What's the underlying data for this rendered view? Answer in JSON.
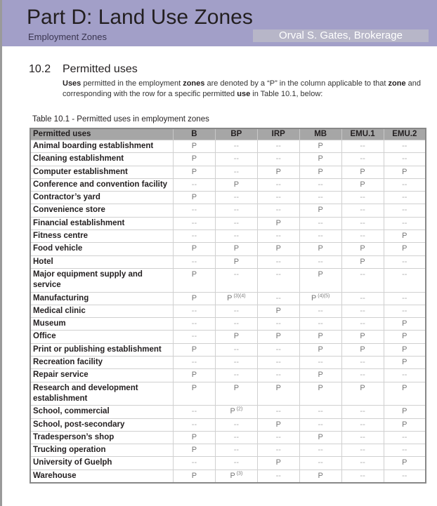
{
  "header": {
    "title": "Part D: Land Use Zones",
    "subtitle": "Employment Zones",
    "band_color": "#a29fc8"
  },
  "section": {
    "number": "10.2",
    "title": "Permitted uses",
    "intro": [
      {
        "t": "Uses",
        "b": true
      },
      {
        "t": " permitted in the employment ",
        "b": false
      },
      {
        "t": "zones",
        "b": true
      },
      {
        "t": " are denoted by a “P” in the column applicable to that ",
        "b": false
      },
      {
        "t": "zone",
        "b": true
      },
      {
        "t": " and corresponding with the row for a specific permitted ",
        "b": false
      },
      {
        "t": "use",
        "b": true
      },
      {
        "t": " in Table 10.1, below:",
        "b": false
      }
    ]
  },
  "table": {
    "caption": "Table 10.1 - Permitted uses in employment zones",
    "columns": [
      "Permitted uses",
      "B",
      "BP",
      "IRP",
      "MB",
      "EMU.1",
      "EMU.2"
    ],
    "rows": [
      [
        "Animal boarding establishment",
        "P",
        "--",
        "--",
        "P",
        "--",
        "--"
      ],
      [
        "Cleaning establishment",
        "P",
        "--",
        "--",
        "P",
        "--",
        "--"
      ],
      [
        "Computer establishment",
        "P",
        "--",
        "P",
        "P",
        "P",
        "P"
      ],
      [
        "Conference and convention facility",
        "--",
        "P",
        "--",
        "--",
        "P",
        "--"
      ],
      [
        "Contractor’s yard",
        "P",
        "--",
        "--",
        "--",
        "--",
        "--"
      ],
      [
        "Convenience store",
        "--",
        "--",
        "--",
        "P",
        "--",
        "--"
      ],
      [
        "Financial establishment",
        "--",
        "--",
        "P",
        "--",
        "--",
        "--"
      ],
      [
        "Fitness centre",
        "--",
        "--",
        "--",
        "--",
        "--",
        "P"
      ],
      [
        "Food vehicle",
        "P",
        "P",
        "P",
        "P",
        "P",
        "P"
      ],
      [
        "Hotel",
        "--",
        "P",
        "--",
        "--",
        "P",
        "--"
      ],
      [
        "Major equipment supply and service",
        "P",
        "--",
        "--",
        "P",
        "--",
        "--"
      ],
      [
        "Manufacturing",
        "P",
        "P (3)(4)",
        "--",
        "P (4)(5)",
        "--",
        "--"
      ],
      [
        "Medical clinic",
        "--",
        "--",
        "P",
        "--",
        "--",
        "--"
      ],
      [
        "Museum",
        "--",
        "--",
        "--",
        "--",
        "--",
        "P"
      ],
      [
        "Office",
        "--",
        "P",
        "P",
        "P",
        "P",
        "P"
      ],
      [
        "Print or publishing establishment",
        "P",
        "--",
        "--",
        "P",
        "P",
        "P"
      ],
      [
        "Recreation facility",
        "--",
        "--",
        "--",
        "--",
        "--",
        "P"
      ],
      [
        "Repair service",
        "P",
        "--",
        "--",
        "P",
        "--",
        "--"
      ],
      [
        "Research and development establishment",
        "P",
        "P",
        "P",
        "P",
        "P",
        "P"
      ],
      [
        "School, commercial",
        "--",
        "P (2)",
        "--",
        "--",
        "--",
        "P"
      ],
      [
        "School, post-secondary",
        "--",
        "--",
        "P",
        "--",
        "--",
        "P"
      ],
      [
        "Tradesperson’s shop",
        "P",
        "--",
        "--",
        "P",
        "--",
        "--"
      ],
      [
        "Trucking operation",
        "P",
        "--",
        "--",
        "--",
        "--",
        "--"
      ],
      [
        "University of Guelph",
        "--",
        "--",
        "P",
        "--",
        "--",
        "P"
      ],
      [
        "Warehouse",
        "P",
        "P (3)",
        "--",
        "P",
        "--",
        "--"
      ]
    ]
  },
  "watermark": "Orval S. Gates, Brokerage"
}
